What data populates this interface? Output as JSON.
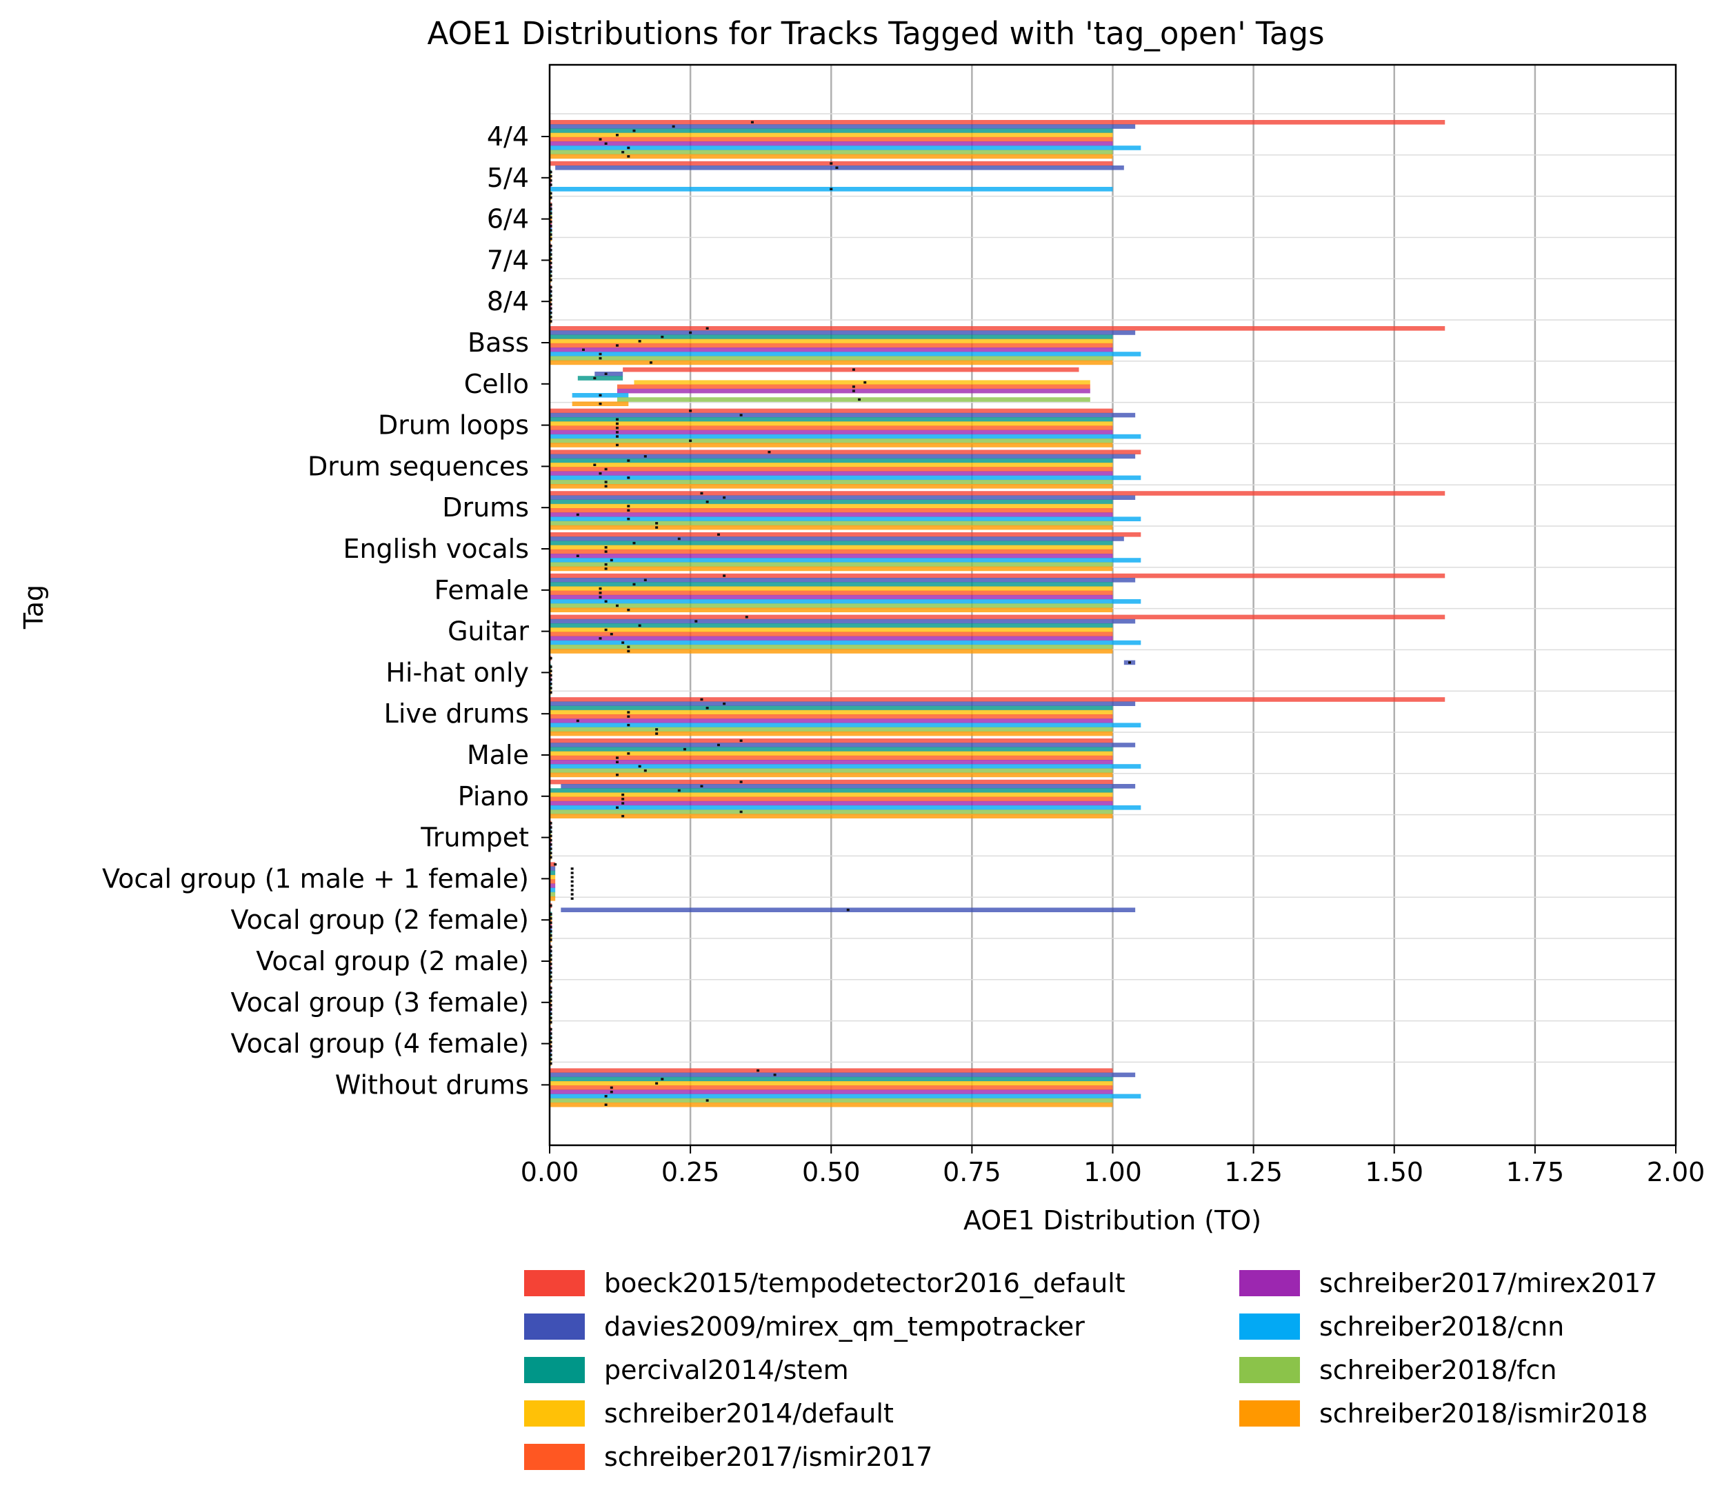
{
  "chart_data": {
    "type": "bar",
    "orientation": "horizontal",
    "title": "AOE1 Distributions for Tracks Tagged with 'tag_open' Tags",
    "xlabel": "AOE1 Distribution (TO)",
    "ylabel": "Tag",
    "xlim": [
      0,
      2
    ],
    "xticks": [
      "0.00",
      "0.25",
      "0.50",
      "0.75",
      "1.00",
      "1.25",
      "1.50",
      "1.75",
      "2.00"
    ],
    "grid": "vertical",
    "legend_position": "below-plot",
    "categories": [
      "4/4",
      "5/4",
      "6/4",
      "7/4",
      "8/4",
      "Bass",
      "Cello",
      "Drum loops",
      "Drum sequences",
      "Drums",
      "English vocals",
      "Female",
      "Guitar",
      "Hi-hat only",
      "Live drums",
      "Male",
      "Piano",
      "Trumpet",
      "Vocal group (1 male + 1 female)",
      "Vocal group (2 female)",
      "Vocal group (2 male)",
      "Vocal group (3 female)",
      "Vocal group (4 female)",
      "Without drums"
    ],
    "series": [
      {
        "name": "boeck2015/tempodetector2016_default",
        "color": "#f44336",
        "ranges": [
          [
            0,
            1.59
          ],
          [
            0,
            1.0
          ],
          [
            0,
            0.004
          ],
          [
            0,
            0.003
          ],
          [
            0,
            0.003
          ],
          [
            0,
            1.59
          ],
          [
            0.13,
            0.94
          ],
          [
            0,
            1.0
          ],
          [
            0,
            1.05
          ],
          [
            0,
            1.59
          ],
          [
            0,
            1.05
          ],
          [
            0,
            1.59
          ],
          [
            0,
            1.59
          ],
          [
            0,
            0.003
          ],
          [
            0,
            1.59
          ],
          [
            0,
            1.0
          ],
          [
            0,
            1.0
          ],
          [
            0,
            0.003
          ],
          [
            0,
            0.01
          ],
          [
            0,
            0.004
          ],
          [
            0,
            0.003
          ],
          [
            0,
            0.003
          ],
          [
            0,
            0.003
          ],
          [
            0,
            1.0
          ]
        ],
        "medians": [
          0.36,
          0.5,
          0.002,
          0.002,
          0.002,
          0.28,
          0.54,
          0.25,
          0.39,
          0.27,
          0.3,
          0.31,
          0.35,
          0.002,
          0.27,
          0.34,
          0.34,
          0.002,
          0.01,
          0.002,
          0.002,
          0.002,
          0.002,
          0.37
        ]
      },
      {
        "name": "davies2009/mirex_qm_tempotracker",
        "color": "#3f51b5",
        "ranges": [
          [
            0,
            1.04
          ],
          [
            0.01,
            1.02
          ],
          [
            0,
            0.004
          ],
          [
            0,
            0.003
          ],
          [
            0,
            0.003
          ],
          [
            0,
            1.04
          ],
          [
            0.08,
            0.13
          ],
          [
            0,
            1.04
          ],
          [
            0,
            1.04
          ],
          [
            0,
            1.04
          ],
          [
            0,
            1.02
          ],
          [
            0,
            1.04
          ],
          [
            0,
            1.04
          ],
          [
            1.02,
            1.04
          ],
          [
            0,
            1.04
          ],
          [
            0,
            1.04
          ],
          [
            0.02,
            1.04
          ],
          [
            0,
            0.003
          ],
          [
            0,
            0.01
          ],
          [
            0.02,
            1.04
          ],
          [
            0,
            0.003
          ],
          [
            0,
            0.003
          ],
          [
            0,
            0.003
          ],
          [
            0,
            1.04
          ]
        ],
        "medians": [
          0.22,
          0.51,
          0.002,
          0.002,
          0.002,
          0.25,
          0.1,
          0.34,
          0.17,
          0.31,
          0.23,
          0.17,
          0.26,
          1.03,
          0.31,
          0.3,
          0.27,
          0.002,
          0.04,
          0.53,
          0.002,
          0.002,
          0.002,
          0.4
        ]
      },
      {
        "name": "percival2014/stem",
        "color": "#009688",
        "ranges": [
          [
            0,
            1.0
          ],
          [
            0,
            0.003
          ],
          [
            0,
            0.004
          ],
          [
            0,
            0.003
          ],
          [
            0,
            0.003
          ],
          [
            0,
            1.0
          ],
          [
            0.05,
            0.13
          ],
          [
            0,
            1.0
          ],
          [
            0,
            1.0
          ],
          [
            0,
            1.0
          ],
          [
            0,
            1.0
          ],
          [
            0,
            1.0
          ],
          [
            0,
            1.0
          ],
          [
            0,
            0.003
          ],
          [
            0,
            1.0
          ],
          [
            0,
            1.0
          ],
          [
            0,
            1.0
          ],
          [
            0,
            0.003
          ],
          [
            0,
            0.01
          ],
          [
            0,
            0.004
          ],
          [
            0,
            0.003
          ],
          [
            0,
            0.003
          ],
          [
            0,
            0.003
          ],
          [
            0,
            1.0
          ]
        ],
        "medians": [
          0.15,
          0.002,
          0.002,
          0.002,
          0.002,
          0.2,
          0.08,
          0.12,
          0.14,
          0.28,
          0.15,
          0.15,
          0.16,
          0.002,
          0.28,
          0.24,
          0.23,
          0.002,
          0.04,
          0.002,
          0.002,
          0.002,
          0.002,
          0.2
        ]
      },
      {
        "name": "schreiber2014/default",
        "color": "#ffc107",
        "ranges": [
          [
            0,
            1.0
          ],
          [
            0,
            0.003
          ],
          [
            0,
            0.004
          ],
          [
            0,
            0.003
          ],
          [
            0,
            0.003
          ],
          [
            0,
            1.0
          ],
          [
            0.15,
            0.96
          ],
          [
            0,
            1.0
          ],
          [
            0,
            1.0
          ],
          [
            0,
            1.0
          ],
          [
            0,
            1.0
          ],
          [
            0,
            1.0
          ],
          [
            0,
            1.0
          ],
          [
            0,
            0.003
          ],
          [
            0,
            1.0
          ],
          [
            0,
            1.0
          ],
          [
            0,
            1.0
          ],
          [
            0,
            0.003
          ],
          [
            0,
            0.01
          ],
          [
            0,
            0.004
          ],
          [
            0,
            0.003
          ],
          [
            0,
            0.003
          ],
          [
            0,
            0.003
          ],
          [
            0,
            1.0
          ]
        ],
        "medians": [
          0.12,
          0.002,
          0.002,
          0.002,
          0.002,
          0.16,
          0.56,
          0.12,
          0.08,
          0.14,
          0.1,
          0.09,
          0.1,
          0.002,
          0.14,
          0.14,
          0.13,
          0.002,
          0.04,
          0.002,
          0.002,
          0.002,
          0.002,
          0.19
        ]
      },
      {
        "name": "schreiber2017/ismir2017",
        "color": "#ff5722",
        "ranges": [
          [
            0,
            1.0
          ],
          [
            0,
            0.003
          ],
          [
            0,
            0.004
          ],
          [
            0,
            0.003
          ],
          [
            0,
            0.003
          ],
          [
            0,
            1.0
          ],
          [
            0.12,
            0.96
          ],
          [
            0,
            1.0
          ],
          [
            0,
            1.0
          ],
          [
            0,
            1.0
          ],
          [
            0,
            1.0
          ],
          [
            0,
            1.0
          ],
          [
            0,
            1.0
          ],
          [
            0,
            0.003
          ],
          [
            0,
            1.0
          ],
          [
            0,
            1.0
          ],
          [
            0,
            1.0
          ],
          [
            0,
            0.003
          ],
          [
            0,
            0.01
          ],
          [
            0,
            0.004
          ],
          [
            0,
            0.003
          ],
          [
            0,
            0.003
          ],
          [
            0,
            0.003
          ],
          [
            0,
            1.0
          ]
        ],
        "medians": [
          0.09,
          0.002,
          0.002,
          0.002,
          0.002,
          0.12,
          0.54,
          0.12,
          0.1,
          0.14,
          0.1,
          0.09,
          0.11,
          0.002,
          0.14,
          0.12,
          0.13,
          0.002,
          0.04,
          0.002,
          0.002,
          0.002,
          0.002,
          0.11
        ]
      },
      {
        "name": "schreiber2017/mirex2017",
        "color": "#9c27b0",
        "ranges": [
          [
            0,
            1.0
          ],
          [
            0,
            0.003
          ],
          [
            0,
            0.004
          ],
          [
            0,
            0.003
          ],
          [
            0,
            0.003
          ],
          [
            0,
            1.0
          ],
          [
            0.12,
            0.96
          ],
          [
            0,
            1.0
          ],
          [
            0,
            1.0
          ],
          [
            0,
            1.0
          ],
          [
            0,
            1.0
          ],
          [
            0,
            1.0
          ],
          [
            0,
            1.0
          ],
          [
            0,
            0.003
          ],
          [
            0,
            1.0
          ],
          [
            0,
            1.0
          ],
          [
            0,
            1.0
          ],
          [
            0,
            0.003
          ],
          [
            0,
            0.01
          ],
          [
            0,
            0.004
          ],
          [
            0,
            0.003
          ],
          [
            0,
            0.003
          ],
          [
            0,
            0.003
          ],
          [
            0,
            1.0
          ]
        ],
        "medians": [
          0.1,
          0.002,
          0.002,
          0.002,
          0.002,
          0.06,
          0.54,
          0.12,
          0.09,
          0.05,
          0.05,
          0.09,
          0.09,
          0.002,
          0.05,
          0.12,
          0.13,
          0.002,
          0.04,
          0.002,
          0.002,
          0.002,
          0.002,
          0.11
        ]
      },
      {
        "name": "schreiber2018/cnn",
        "color": "#03a9f4",
        "ranges": [
          [
            0,
            1.05
          ],
          [
            0,
            1.0
          ],
          [
            0,
            0.004
          ],
          [
            0,
            0.003
          ],
          [
            0,
            0.003
          ],
          [
            0,
            1.05
          ],
          [
            0.04,
            0.14
          ],
          [
            0,
            1.05
          ],
          [
            0,
            1.05
          ],
          [
            0,
            1.05
          ],
          [
            0,
            1.05
          ],
          [
            0,
            1.05
          ],
          [
            0,
            1.05
          ],
          [
            0,
            0.003
          ],
          [
            0,
            1.05
          ],
          [
            0,
            1.05
          ],
          [
            0,
            1.05
          ],
          [
            0,
            0.003
          ],
          [
            0,
            0.01
          ],
          [
            0,
            0.004
          ],
          [
            0,
            0.003
          ],
          [
            0,
            0.003
          ],
          [
            0,
            0.003
          ],
          [
            0,
            1.05
          ]
        ],
        "medians": [
          0.14,
          0.5,
          0.002,
          0.002,
          0.002,
          0.09,
          0.09,
          0.12,
          0.14,
          0.14,
          0.11,
          0.1,
          0.13,
          0.002,
          0.14,
          0.16,
          0.12,
          0.002,
          0.04,
          0.002,
          0.002,
          0.002,
          0.002,
          0.1
        ]
      },
      {
        "name": "schreiber2018/fcn",
        "color": "#8bc34a",
        "ranges": [
          [
            0,
            1.0
          ],
          [
            0,
            0.003
          ],
          [
            0,
            0.004
          ],
          [
            0,
            0.003
          ],
          [
            0,
            0.003
          ],
          [
            0,
            1.0
          ],
          [
            0.12,
            0.96
          ],
          [
            0,
            1.0
          ],
          [
            0,
            1.0
          ],
          [
            0,
            1.0
          ],
          [
            0,
            1.0
          ],
          [
            0,
            1.0
          ],
          [
            0,
            1.0
          ],
          [
            0,
            0.003
          ],
          [
            0,
            1.0
          ],
          [
            0,
            1.0
          ],
          [
            0,
            1.0
          ],
          [
            0,
            0.003
          ],
          [
            0,
            0.01
          ],
          [
            0,
            0.004
          ],
          [
            0,
            0.003
          ],
          [
            0,
            0.003
          ],
          [
            0,
            0.003
          ],
          [
            0,
            1.0
          ]
        ],
        "medians": [
          0.13,
          0.002,
          0.002,
          0.002,
          0.002,
          0.09,
          0.55,
          0.25,
          0.1,
          0.19,
          0.1,
          0.12,
          0.14,
          0.002,
          0.19,
          0.17,
          0.34,
          0.002,
          0.04,
          0.002,
          0.002,
          0.002,
          0.002,
          0.28
        ]
      },
      {
        "name": "schreiber2018/ismir2018",
        "color": "#ff9800",
        "ranges": [
          [
            0,
            1.0
          ],
          [
            0,
            0.003
          ],
          [
            0,
            0.004
          ],
          [
            0,
            0.003
          ],
          [
            0,
            0.003
          ],
          [
            0,
            1.0
          ],
          [
            0.04,
            0.14
          ],
          [
            0,
            1.0
          ],
          [
            0,
            1.0
          ],
          [
            0,
            1.0
          ],
          [
            0,
            1.0
          ],
          [
            0,
            1.0
          ],
          [
            0,
            1.0
          ],
          [
            0,
            0.003
          ],
          [
            0,
            1.0
          ],
          [
            0,
            1.0
          ],
          [
            0,
            1.0
          ],
          [
            0,
            0.003
          ],
          [
            0,
            0.01
          ],
          [
            0,
            0.004
          ],
          [
            0,
            0.003
          ],
          [
            0,
            0.003
          ],
          [
            0,
            0.003
          ],
          [
            0,
            1.0
          ]
        ],
        "medians": [
          0.14,
          0.002,
          0.002,
          0.002,
          0.002,
          0.18,
          0.09,
          0.12,
          0.1,
          0.19,
          0.1,
          0.14,
          0.14,
          0.002,
          0.19,
          0.12,
          0.13,
          0.002,
          0.04,
          0.002,
          0.002,
          0.002,
          0.002,
          0.1
        ]
      }
    ]
  }
}
